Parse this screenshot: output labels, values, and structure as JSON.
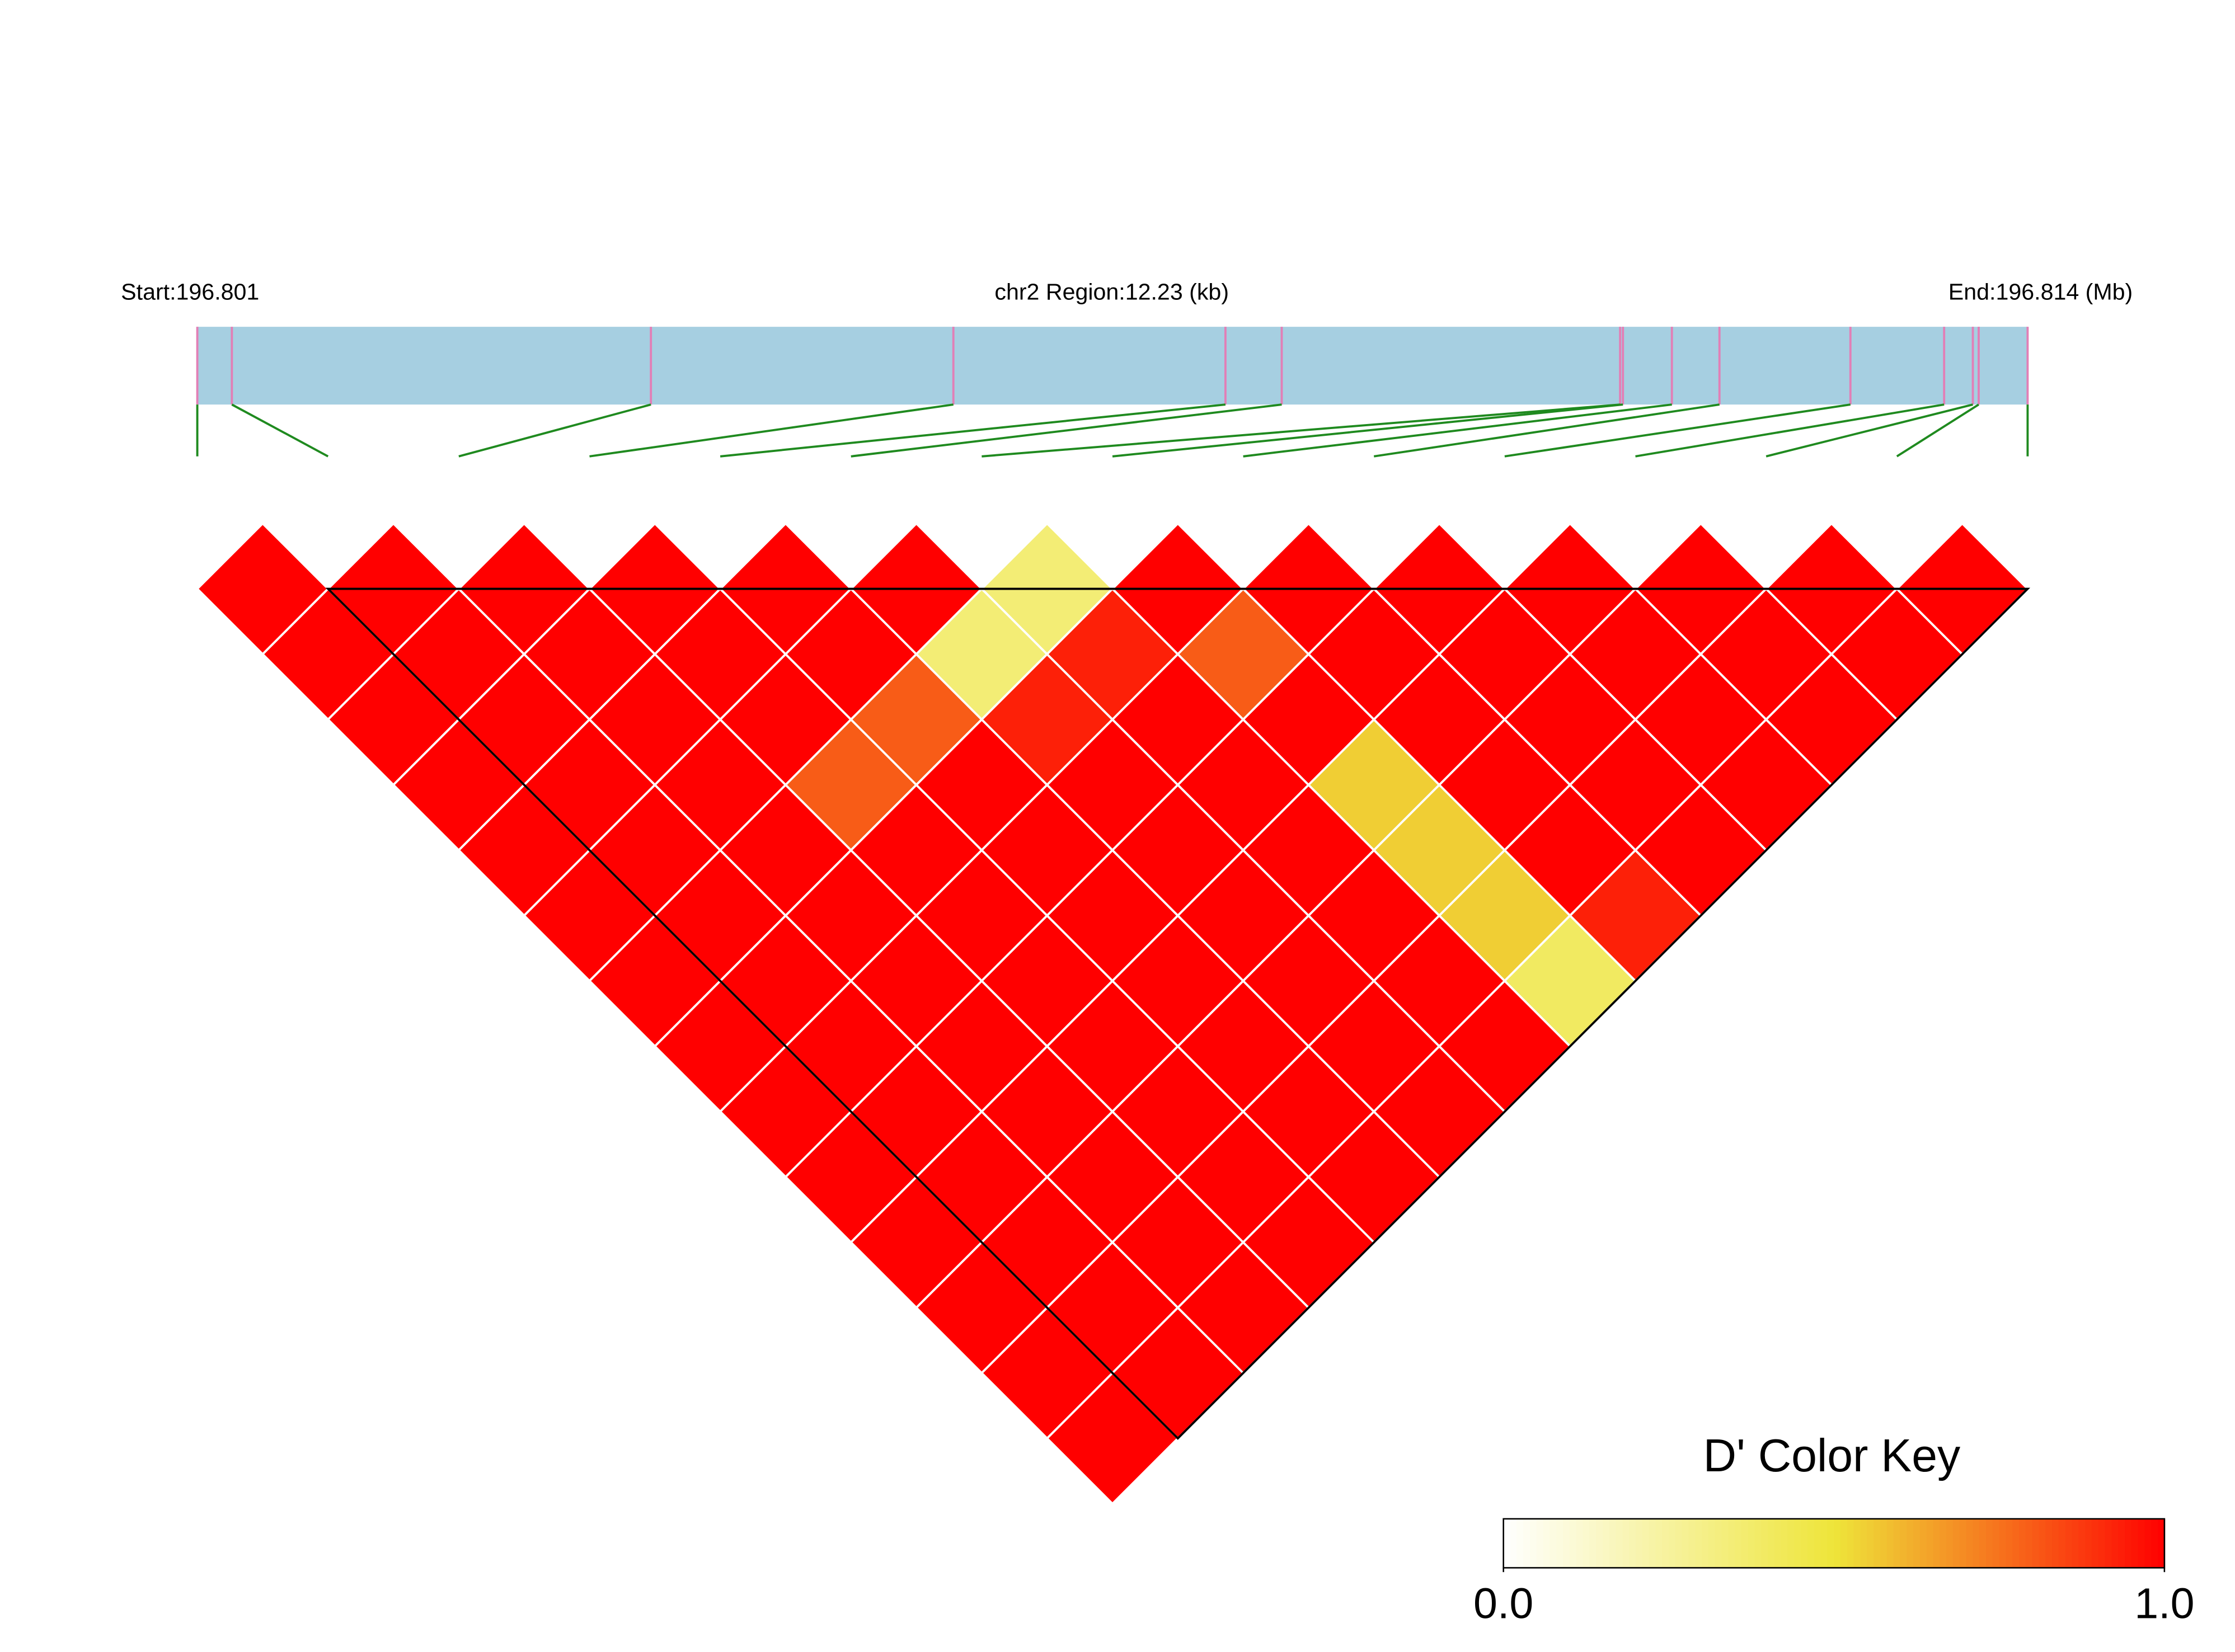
{
  "chart_data": {
    "type": "ld-heatmap",
    "start_label": "Start:196.801",
    "region_label": "chr2 Region:12.23 (kb)",
    "end_label": "End:196.814 (Mb)",
    "region_kb": 12.23,
    "snp_positions_kb": [
      0,
      0.231,
      3.031,
      5.052,
      6.87,
      7.246,
      9.507,
      9.526,
      9.853,
      10.171,
      11.046,
      11.672,
      11.864,
      11.903,
      12.23
    ],
    "values": [
      [
        1,
        1,
        1,
        1,
        1,
        1,
        1,
        1,
        1,
        1,
        1,
        1,
        1,
        1
      ],
      [
        1,
        1,
        1,
        1,
        1,
        1,
        1,
        1,
        1,
        1,
        1,
        1,
        1
      ],
      [
        1,
        1,
        1,
        1,
        1,
        1,
        1,
        1,
        1,
        1,
        1,
        1
      ],
      [
        1,
        1,
        1,
        0.8,
        1,
        1,
        1,
        1,
        1,
        1,
        1
      ],
      [
        1,
        1,
        0.8,
        1,
        1,
        1,
        1,
        1,
        1,
        1
      ],
      [
        1,
        0.35,
        0.93,
        1,
        1,
        1,
        1,
        1,
        1
      ],
      [
        0.35,
        0.93,
        1,
        1,
        1,
        1,
        1,
        1
      ],
      [
        1,
        0.8,
        1,
        0.55,
        0.55,
        0.55,
        0.4
      ],
      [
        1,
        1,
        1,
        1,
        1,
        0.93
      ],
      [
        1,
        1,
        1,
        1,
        1
      ],
      [
        1,
        1,
        1,
        1
      ],
      [
        1,
        1,
        1
      ],
      [
        1,
        1
      ],
      [
        1
      ]
    ],
    "colors": [
      "#ffffff",
      "#eee53a",
      "#ff0000"
    ],
    "legend_title": "D' Color Key",
    "legend_ticks": [
      {
        "value": 0,
        "label": "0.0"
      },
      {
        "value": 1,
        "label": "1.0"
      }
    ]
  }
}
